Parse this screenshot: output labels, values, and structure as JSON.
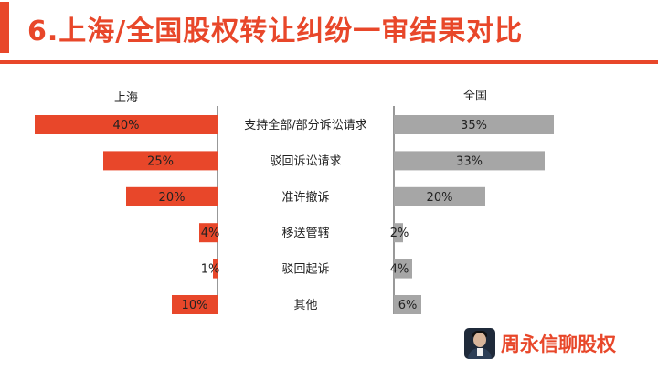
{
  "title": "6.上海/全国股权转让纠纷一审结果对比",
  "brand": {
    "name": "周永信聊股权"
  },
  "colors": {
    "accent": "#e8472a",
    "left_bar": "#e8472a",
    "right_bar": "#a6a6a6",
    "divider": "#555555"
  },
  "chart_data": {
    "type": "bar",
    "layout": "back-to-back horizontal",
    "title": "6.上海/全国股权转让纠纷一审结果对比",
    "categories": [
      "支持全部/部分诉讼请求",
      "驳回诉讼请求",
      "准许撤诉",
      "移送管辖",
      "驳回起诉",
      "其他"
    ],
    "series": [
      {
        "name": "上海",
        "values": [
          40,
          25,
          20,
          4,
          1,
          10
        ],
        "labels": [
          "40%",
          "25%",
          "20%",
          "4%",
          "1%",
          "10%"
        ]
      },
      {
        "name": "全国",
        "values": [
          35,
          33,
          20,
          2,
          4,
          6
        ],
        "labels": [
          "35%",
          "33%",
          "20%",
          "2%",
          "4%",
          "6%"
        ]
      }
    ],
    "unit": "%",
    "xlim": [
      0,
      40
    ]
  }
}
